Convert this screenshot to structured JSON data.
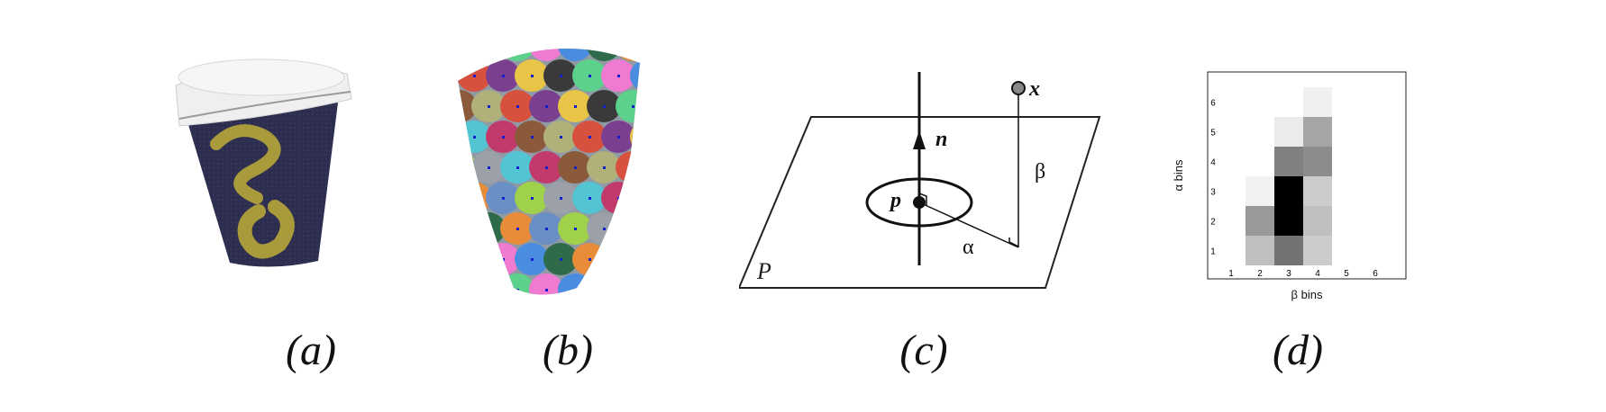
{
  "captions": {
    "a": "(a)",
    "b": "(b)",
    "c": "(c)",
    "d": "(d)"
  },
  "cup_a": {
    "body_color": "#2c2d4f",
    "lid_color": "#efefef",
    "logo_color": "#a99a3c"
  },
  "cup_b": {
    "patch_colors": [
      "#e8c547",
      "#6a8fc4",
      "#d8503e",
      "#2f6b4a",
      "#8b5a3a",
      "#f07ad0",
      "#53c4d1",
      "#3a3a3a",
      "#9fd14a",
      "#7a3f8f",
      "#e88c3a",
      "#b0b07a",
      "#4a8ce0",
      "#c23a6b",
      "#5bd18b",
      "#9ca0a8"
    ]
  },
  "diagram": {
    "plane_label": "P",
    "normal_label": "n",
    "point_p_label": "p",
    "point_x_label": "x",
    "alpha_label": "α",
    "beta_label": "β"
  },
  "chart_data": {
    "type": "heatmap",
    "xlabel": "β bins",
    "ylabel": "α bins",
    "x_ticks": [
      1,
      2,
      3,
      4,
      5,
      6
    ],
    "y_ticks": [
      1,
      2,
      3,
      4,
      5,
      6
    ],
    "colormap": "white-to-black (higher = darker)",
    "cells": [
      {
        "beta": 2,
        "alpha": 1,
        "value": 0.25
      },
      {
        "beta": 2,
        "alpha": 2,
        "value": 0.4
      },
      {
        "beta": 2,
        "alpha": 3,
        "value": 0.05
      },
      {
        "beta": 3,
        "alpha": 1,
        "value": 0.55
      },
      {
        "beta": 3,
        "alpha": 2,
        "value": 1.0
      },
      {
        "beta": 3,
        "alpha": 3,
        "value": 1.0
      },
      {
        "beta": 3,
        "alpha": 4,
        "value": 0.5
      },
      {
        "beta": 3,
        "alpha": 5,
        "value": 0.08
      },
      {
        "beta": 4,
        "alpha": 1,
        "value": 0.2
      },
      {
        "beta": 4,
        "alpha": 2,
        "value": 0.25
      },
      {
        "beta": 4,
        "alpha": 3,
        "value": 0.2
      },
      {
        "beta": 4,
        "alpha": 4,
        "value": 0.45
      },
      {
        "beta": 4,
        "alpha": 5,
        "value": 0.35
      },
      {
        "beta": 4,
        "alpha": 6,
        "value": 0.06
      }
    ]
  }
}
